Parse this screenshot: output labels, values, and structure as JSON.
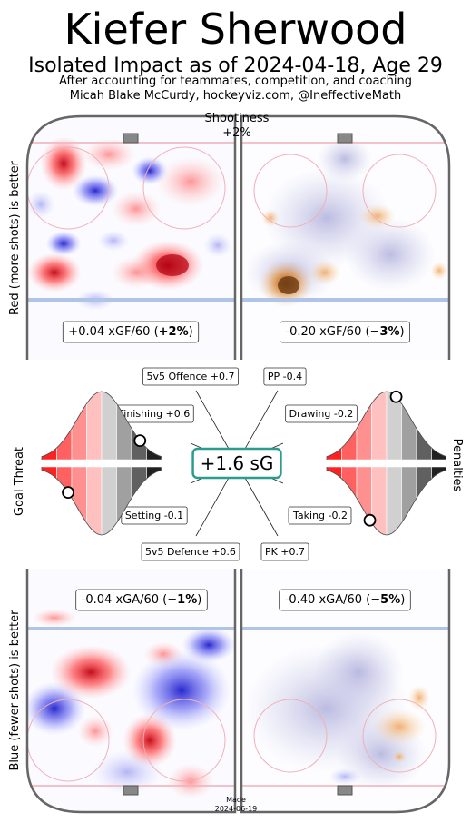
{
  "header": {
    "player_name": "Kiefer Sherwood",
    "subtitle": "Isolated Impact as of 2024-04-18, Age 29",
    "note_line1": "After accounting for teammates, competition, and coaching",
    "note_line2": "Micah Blake McCurdy, hockeyviz.com, @IneffectiveMath"
  },
  "footer": {
    "made_label": "Made",
    "made_date": "2024-06-19"
  },
  "colors": {
    "more_shots_red": "#e8202a",
    "fewer_shots_blue": "#2020d8",
    "pp_orange": "#e08a30",
    "pk_purple": "#a8a8d8",
    "accent_teal": "#2a9d8f",
    "rink_boards": "#666666",
    "blue_line": "#b0c4e8",
    "goal_line": "#f0b0b8"
  },
  "chart_data": [
    {
      "type": "heatmap",
      "panel": "5v5 offence",
      "side_label": "Red (more shots) is better",
      "stat_value": "+0.04 xGF/60 (",
      "stat_pct": "+2%",
      "stat_close": ")",
      "xgf_per_60": 0.04,
      "pct_change": 2
    },
    {
      "type": "heatmap",
      "panel": "power play",
      "stat_value": "-0.20 xGF/60 (",
      "stat_pct": "−3%",
      "stat_close": ")",
      "xgf_per_60": -0.2,
      "pct_change": -3
    },
    {
      "type": "heatmap",
      "panel": "5v5 defence",
      "side_label": "Blue (fewer shots) is better",
      "stat_value": "-0.04 xGA/60 (",
      "stat_pct": "−1%",
      "stat_close": ")",
      "xga_per_60": -0.04,
      "pct_change": -1
    },
    {
      "type": "heatmap",
      "panel": "penalty kill",
      "stat_value": "-0.40 xGA/60 (",
      "stat_pct": "−5%",
      "stat_close": ")",
      "xga_per_60": -0.4,
      "pct_change": -5
    },
    {
      "type": "other",
      "panel": "summary",
      "total_label": "+1.6 sG",
      "total_sg": 1.6,
      "shootiness_label": "Shootiness",
      "shootiness_value": "+2%",
      "goal_threat_label": "Goal Threat",
      "penalties_label": "Penalties",
      "components": [
        {
          "label": "5v5 Offence +0.7",
          "value": 0.7
        },
        {
          "label": "PP -0.4",
          "value": -0.4
        },
        {
          "label": "Finishing +0.6",
          "value": 0.6
        },
        {
          "label": "Drawing -0.2",
          "value": -0.2
        },
        {
          "label": "Setting -0.1",
          "value": -0.1
        },
        {
          "label": "Taking -0.2",
          "value": -0.2
        },
        {
          "label": "5v5 Defence +0.6",
          "value": 0.6
        },
        {
          "label": "PK +0.7",
          "value": 0.7
        }
      ],
      "distributions": {
        "goal_threat_upper_percentile": 0.82,
        "goal_threat_lower_percentile": 0.22,
        "penalties_upper_percentile": 0.58,
        "penalties_lower_percentile": 0.36
      }
    }
  ]
}
